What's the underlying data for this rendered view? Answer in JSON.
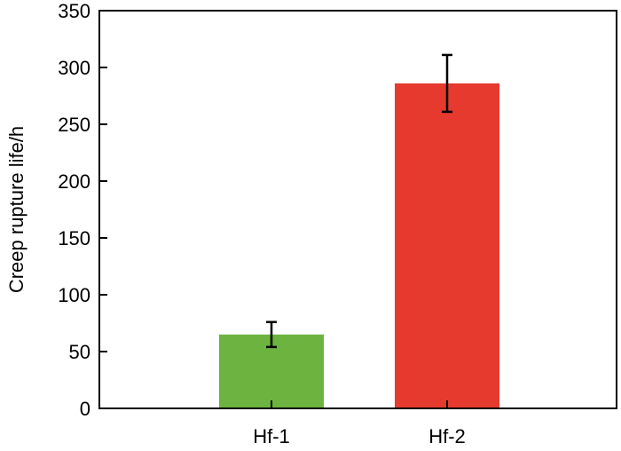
{
  "chart_data": {
    "type": "bar",
    "title": "",
    "xlabel": "",
    "ylabel": "Creep rupture life/h",
    "categories": [
      "Hf-1",
      "Hf-2"
    ],
    "values": [
      65,
      286
    ],
    "error": [
      11,
      25
    ],
    "colors": [
      "#6db33f",
      "#e63a2e"
    ],
    "ylim": [
      0,
      350
    ],
    "yticks": [
      0,
      50,
      100,
      150,
      200,
      250,
      300,
      350
    ],
    "grid": false,
    "legend": "none"
  }
}
